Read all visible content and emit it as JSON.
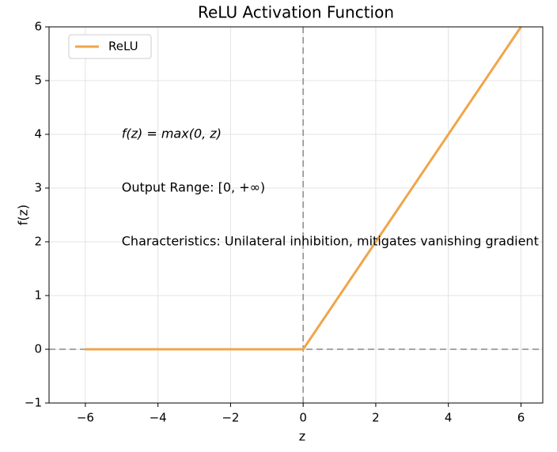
{
  "chart_data": {
    "type": "line",
    "title": "ReLU Activation Function",
    "xlabel": "z",
    "ylabel": "f(z)",
    "x": [
      -6,
      0,
      6
    ],
    "series": [
      {
        "name": "ReLU",
        "color": "#f0a54a",
        "values": [
          0,
          0,
          6
        ]
      }
    ],
    "xlim": [
      -7,
      6.6
    ],
    "ylim": [
      -1,
      6
    ],
    "xticks": [
      {
        "value": -6,
        "label": "−6"
      },
      {
        "value": -4,
        "label": "−4"
      },
      {
        "value": -2,
        "label": "−2"
      },
      0,
      2,
      4,
      6
    ],
    "yticks": [
      {
        "value": -1,
        "label": "−1"
      },
      0,
      1,
      2,
      3,
      4,
      5,
      6
    ],
    "reference_lines": {
      "x": 0,
      "y": 0
    },
    "grid": true,
    "legend": "upper left",
    "annotations": [
      "f(z) = max(0, z)",
      "Output Range: [0, +∞)",
      "Characteristics: Unilateral inhibition, mitigates vanishing gradient"
    ]
  }
}
